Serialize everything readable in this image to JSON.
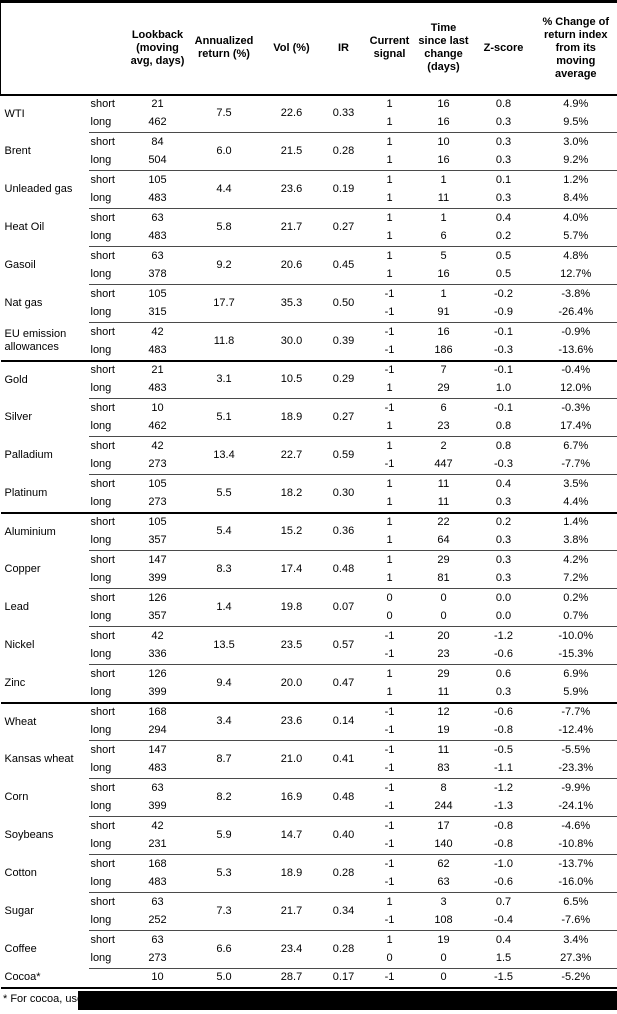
{
  "table": {
    "column_headers": [
      "Lookback (moving avg, days)",
      "Annualized return (%)",
      "Vol (%)",
      "IR",
      "Current signal",
      "Time since last change (days)",
      "Z-score",
      "% Change of return index from its moving average"
    ],
    "sections": [
      {
        "name": "energy",
        "commodities": [
          {
            "name": "WTI",
            "annualized": "7.5",
            "vol": "22.6",
            "ir": "0.33",
            "rows": [
              {
                "horizon": "short",
                "lookback": "21",
                "signal": "1",
                "time_since": "16",
                "z_score": "0.8",
                "pct_change": "4.9%"
              },
              {
                "horizon": "long",
                "lookback": "462",
                "signal": "1",
                "time_since": "16",
                "z_score": "0.3",
                "pct_change": "9.5%"
              }
            ]
          },
          {
            "name": "Brent",
            "annualized": "6.0",
            "vol": "21.5",
            "ir": "0.28",
            "rows": [
              {
                "horizon": "short",
                "lookback": "84",
                "signal": "1",
                "time_since": "10",
                "z_score": "0.3",
                "pct_change": "3.0%"
              },
              {
                "horizon": "long",
                "lookback": "504",
                "signal": "1",
                "time_since": "16",
                "z_score": "0.3",
                "pct_change": "9.2%"
              }
            ]
          },
          {
            "name": "Unleaded gas",
            "annualized": "4.4",
            "vol": "23.6",
            "ir": "0.19",
            "rows": [
              {
                "horizon": "short",
                "lookback": "105",
                "signal": "1",
                "time_since": "1",
                "z_score": "0.1",
                "pct_change": "1.2%"
              },
              {
                "horizon": "long",
                "lookback": "483",
                "signal": "1",
                "time_since": "11",
                "z_score": "0.3",
                "pct_change": "8.4%"
              }
            ]
          },
          {
            "name": "Heat Oil",
            "annualized": "5.8",
            "vol": "21.7",
            "ir": "0.27",
            "rows": [
              {
                "horizon": "short",
                "lookback": "63",
                "signal": "1",
                "time_since": "1",
                "z_score": "0.4",
                "pct_change": "4.0%"
              },
              {
                "horizon": "long",
                "lookback": "483",
                "signal": "1",
                "time_since": "6",
                "z_score": "0.2",
                "pct_change": "5.7%"
              }
            ]
          },
          {
            "name": "Gasoil",
            "annualized": "9.2",
            "vol": "20.6",
            "ir": "0.45",
            "rows": [
              {
                "horizon": "short",
                "lookback": "63",
                "signal": "1",
                "time_since": "5",
                "z_score": "0.5",
                "pct_change": "4.8%"
              },
              {
                "horizon": "long",
                "lookback": "378",
                "signal": "1",
                "time_since": "16",
                "z_score": "0.5",
                "pct_change": "12.7%"
              }
            ]
          },
          {
            "name": "Nat gas",
            "annualized": "17.7",
            "vol": "35.3",
            "ir": "0.50",
            "rows": [
              {
                "horizon": "short",
                "lookback": "105",
                "signal": "-1",
                "time_since": "1",
                "z_score": "-0.2",
                "pct_change": "-3.8%"
              },
              {
                "horizon": "long",
                "lookback": "315",
                "signal": "-1",
                "time_since": "91",
                "z_score": "-0.9",
                "pct_change": "-26.4%"
              }
            ]
          },
          {
            "name": "EU emission allowances",
            "annualized": "11.8",
            "vol": "30.0",
            "ir": "0.39",
            "rows": [
              {
                "horizon": "short",
                "lookback": "42",
                "signal": "-1",
                "time_since": "16",
                "z_score": "-0.1",
                "pct_change": "-0.9%"
              },
              {
                "horizon": "long",
                "lookback": "483",
                "signal": "-1",
                "time_since": "186",
                "z_score": "-0.3",
                "pct_change": "-13.6%"
              }
            ]
          }
        ]
      },
      {
        "name": "precious-metals",
        "commodities": [
          {
            "name": "Gold",
            "annualized": "3.1",
            "vol": "10.5",
            "ir": "0.29",
            "rows": [
              {
                "horizon": "short",
                "lookback": "21",
                "signal": "-1",
                "time_since": "7",
                "z_score": "-0.1",
                "pct_change": "-0.4%"
              },
              {
                "horizon": "long",
                "lookback": "483",
                "signal": "1",
                "time_since": "29",
                "z_score": "1.0",
                "pct_change": "12.0%"
              }
            ]
          },
          {
            "name": "Silver",
            "annualized": "5.1",
            "vol": "18.9",
            "ir": "0.27",
            "rows": [
              {
                "horizon": "short",
                "lookback": "10",
                "signal": "-1",
                "time_since": "6",
                "z_score": "-0.1",
                "pct_change": "-0.3%"
              },
              {
                "horizon": "long",
                "lookback": "462",
                "signal": "1",
                "time_since": "23",
                "z_score": "0.8",
                "pct_change": "17.4%"
              }
            ]
          },
          {
            "name": "Palladium",
            "annualized": "13.4",
            "vol": "22.7",
            "ir": "0.59",
            "rows": [
              {
                "horizon": "short",
                "lookback": "42",
                "signal": "1",
                "time_since": "2",
                "z_score": "0.8",
                "pct_change": "6.7%"
              },
              {
                "horizon": "long",
                "lookback": "273",
                "signal": "-1",
                "time_since": "447",
                "z_score": "-0.3",
                "pct_change": "-7.7%"
              }
            ]
          },
          {
            "name": "Platinum",
            "annualized": "5.5",
            "vol": "18.2",
            "ir": "0.30",
            "rows": [
              {
                "horizon": "short",
                "lookback": "105",
                "signal": "1",
                "time_since": "11",
                "z_score": "0.4",
                "pct_change": "3.5%"
              },
              {
                "horizon": "long",
                "lookback": "273",
                "signal": "1",
                "time_since": "11",
                "z_score": "0.3",
                "pct_change": "4.4%"
              }
            ]
          }
        ]
      },
      {
        "name": "base-metals",
        "commodities": [
          {
            "name": "Aluminium",
            "annualized": "5.4",
            "vol": "15.2",
            "ir": "0.36",
            "rows": [
              {
                "horizon": "short",
                "lookback": "105",
                "signal": "1",
                "time_since": "22",
                "z_score": "0.2",
                "pct_change": "1.4%"
              },
              {
                "horizon": "long",
                "lookback": "357",
                "signal": "1",
                "time_since": "64",
                "z_score": "0.3",
                "pct_change": "3.8%"
              }
            ]
          },
          {
            "name": "Copper",
            "annualized": "8.3",
            "vol": "17.4",
            "ir": "0.48",
            "rows": [
              {
                "horizon": "short",
                "lookback": "147",
                "signal": "1",
                "time_since": "29",
                "z_score": "0.3",
                "pct_change": "4.2%"
              },
              {
                "horizon": "long",
                "lookback": "399",
                "signal": "1",
                "time_since": "81",
                "z_score": "0.3",
                "pct_change": "7.2%"
              }
            ]
          },
          {
            "name": "Lead",
            "annualized": "1.4",
            "vol": "19.8",
            "ir": "0.07",
            "rows": [
              {
                "horizon": "short",
                "lookback": "126",
                "signal": "0",
                "time_since": "0",
                "z_score": "0.0",
                "pct_change": "0.2%"
              },
              {
                "horizon": "long",
                "lookback": "357",
                "signal": "0",
                "time_since": "0",
                "z_score": "0.0",
                "pct_change": "0.7%"
              }
            ]
          },
          {
            "name": "Nickel",
            "annualized": "13.5",
            "vol": "23.5",
            "ir": "0.57",
            "rows": [
              {
                "horizon": "short",
                "lookback": "42",
                "signal": "-1",
                "time_since": "20",
                "z_score": "-1.2",
                "pct_change": "-10.0%"
              },
              {
                "horizon": "long",
                "lookback": "336",
                "signal": "-1",
                "time_since": "23",
                "z_score": "-0.6",
                "pct_change": "-15.3%"
              }
            ]
          },
          {
            "name": "Zinc",
            "annualized": "9.4",
            "vol": "20.0",
            "ir": "0.47",
            "rows": [
              {
                "horizon": "short",
                "lookback": "126",
                "signal": "1",
                "time_since": "29",
                "z_score": "0.6",
                "pct_change": "6.9%"
              },
              {
                "horizon": "long",
                "lookback": "399",
                "signal": "1",
                "time_since": "11",
                "z_score": "0.3",
                "pct_change": "5.9%"
              }
            ]
          }
        ]
      },
      {
        "name": "agriculture",
        "commodities": [
          {
            "name": "Wheat",
            "annualized": "3.4",
            "vol": "23.6",
            "ir": "0.14",
            "rows": [
              {
                "horizon": "short",
                "lookback": "168",
                "signal": "-1",
                "time_since": "12",
                "z_score": "-0.6",
                "pct_change": "-7.7%"
              },
              {
                "horizon": "long",
                "lookback": "294",
                "signal": "-1",
                "time_since": "19",
                "z_score": "-0.8",
                "pct_change": "-12.4%"
              }
            ]
          },
          {
            "name": "Kansas wheat",
            "annualized": "8.7",
            "vol": "21.0",
            "ir": "0.41",
            "rows": [
              {
                "horizon": "short",
                "lookback": "147",
                "signal": "-1",
                "time_since": "11",
                "z_score": "-0.5",
                "pct_change": "-5.5%"
              },
              {
                "horizon": "long",
                "lookback": "483",
                "signal": "-1",
                "time_since": "83",
                "z_score": "-1.1",
                "pct_change": "-23.3%"
              }
            ]
          },
          {
            "name": "Corn",
            "annualized": "8.2",
            "vol": "16.9",
            "ir": "0.48",
            "rows": [
              {
                "horizon": "short",
                "lookback": "63",
                "signal": "-1",
                "time_since": "8",
                "z_score": "-1.2",
                "pct_change": "-9.9%"
              },
              {
                "horizon": "long",
                "lookback": "399",
                "signal": "-1",
                "time_since": "244",
                "z_score": "-1.3",
                "pct_change": "-24.1%"
              }
            ]
          },
          {
            "name": "Soybeans",
            "annualized": "5.9",
            "vol": "14.7",
            "ir": "0.40",
            "rows": [
              {
                "horizon": "short",
                "lookback": "42",
                "signal": "-1",
                "time_since": "17",
                "z_score": "-0.8",
                "pct_change": "-4.6%"
              },
              {
                "horizon": "long",
                "lookback": "231",
                "signal": "-1",
                "time_since": "140",
                "z_score": "-0.8",
                "pct_change": "-10.8%"
              }
            ]
          },
          {
            "name": "Cotton",
            "annualized": "5.3",
            "vol": "18.9",
            "ir": "0.28",
            "rows": [
              {
                "horizon": "short",
                "lookback": "168",
                "signal": "-1",
                "time_since": "62",
                "z_score": "-1.0",
                "pct_change": "-13.7%"
              },
              {
                "horizon": "long",
                "lookback": "483",
                "signal": "-1",
                "time_since": "63",
                "z_score": "-0.6",
                "pct_change": "-16.0%"
              }
            ]
          },
          {
            "name": "Sugar",
            "annualized": "7.3",
            "vol": "21.7",
            "ir": "0.34",
            "rows": [
              {
                "horizon": "short",
                "lookback": "63",
                "signal": "1",
                "time_since": "3",
                "z_score": "0.7",
                "pct_change": "6.5%"
              },
              {
                "horizon": "long",
                "lookback": "252",
                "signal": "-1",
                "time_since": "108",
                "z_score": "-0.4",
                "pct_change": "-7.6%"
              }
            ]
          },
          {
            "name": "Coffee",
            "annualized": "6.6",
            "vol": "23.4",
            "ir": "0.28",
            "rows": [
              {
                "horizon": "short",
                "lookback": "63",
                "signal": "1",
                "time_since": "19",
                "z_score": "0.4",
                "pct_change": "3.4%"
              },
              {
                "horizon": "long",
                "lookback": "273",
                "signal": "0",
                "time_since": "0",
                "z_score": "1.5",
                "pct_change": "27.3%"
              }
            ]
          },
          {
            "name": "Cocoa*",
            "annualized": "5.0",
            "vol": "28.7",
            "ir": "0.17",
            "rows": [
              {
                "horizon": "",
                "lookback": "10",
                "signal": "-1",
                "time_since": "0",
                "z_score": "-1.5",
                "pct_change": "-5.2%"
              }
            ]
          }
        ]
      }
    ]
  },
  "footnote": {
    "text": "* For cocoa, uses c",
    "redacted": true
  },
  "colors": {
    "thick_rule": "#000000",
    "thin_rule": "#4a4a4a",
    "background": "#ffffff",
    "text": "#000000"
  }
}
